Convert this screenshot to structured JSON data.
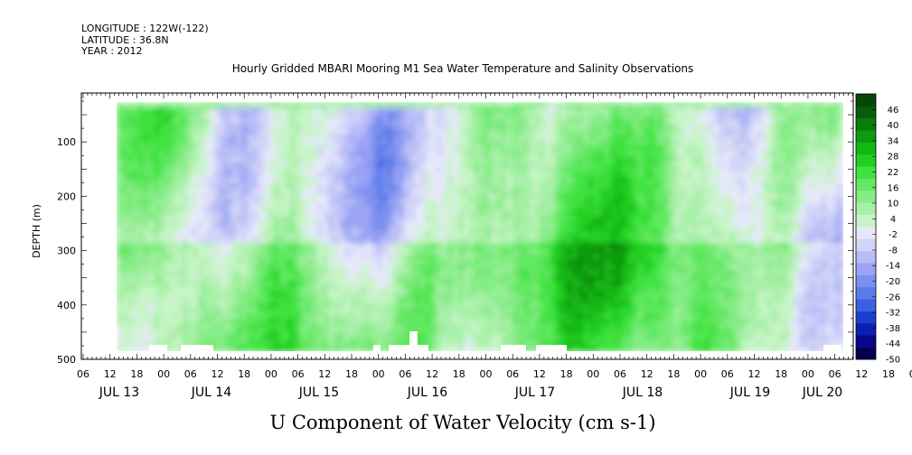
{
  "header": {
    "longitude": "LONGITUDE : 122W(-122)",
    "latitude": "LATITUDE : 36.8N",
    "year": "YEAR : 2012"
  },
  "chart_data": {
    "type": "heatmap",
    "title": "Hourly Gridded MBARI Mooring M1 Sea Water Temperature and Salinity Observations",
    "xlabel": "U Component of Water Velocity (cm s-1)",
    "ylabel": "DEPTH (m)",
    "x_hour_ticks": [
      "06",
      "12",
      "18",
      "00",
      "06",
      "12",
      "18",
      "00",
      "06",
      "12",
      "18",
      "00",
      "06",
      "12",
      "18",
      "00",
      "06",
      "12",
      "18",
      "00",
      "06",
      "12",
      "18",
      "00",
      "06",
      "12",
      "18",
      "00",
      "06",
      "12",
      "18",
      "00",
      "06"
    ],
    "x_date_labels": [
      "JUL 13",
      "JUL 14",
      "JUL 15",
      "JUL 16",
      "JUL 17",
      "JUL 18",
      "JUL 19",
      "JUL 20"
    ],
    "y_ticks": [
      100,
      200,
      300,
      400,
      500
    ],
    "ylim": [
      500,
      10
    ],
    "colorbar": {
      "ticks": [
        46,
        40,
        34,
        28,
        22,
        16,
        10,
        4,
        -2,
        -8,
        -14,
        -20,
        -26,
        -32,
        -38,
        -44,
        -50
      ],
      "range": [
        -50,
        52
      ],
      "colors": [
        "#04004f",
        "#07078c",
        "#0c1fb4",
        "#1c3fd0",
        "#3a5fe0",
        "#5a7ae8",
        "#7a8ff0",
        "#9aa3f4",
        "#b8bdf6",
        "#d2d4f8",
        "#e6e8fa",
        "#c8f4c8",
        "#a8f0a8",
        "#86ec86",
        "#62e862",
        "#3fe23f",
        "#22d022",
        "#14b614",
        "#0e9a0e",
        "#0a7c0a",
        "#085e08",
        "#064606"
      ]
    },
    "grid": false,
    "legend": "colorbar-right"
  }
}
